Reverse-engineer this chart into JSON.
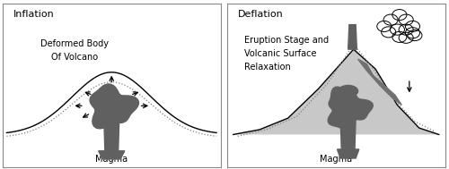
{
  "fig_width": 5.0,
  "fig_height": 1.89,
  "dpi": 100,
  "bg_color": "#ffffff",
  "border_color": "#888888",
  "dark_gray": "#606060",
  "light_gray": "#c8c8c8",
  "left_title": "Inflation",
  "right_title": "Deflation",
  "left_label1": "Deformed Body",
  "left_label2": "Of Volcano",
  "right_label1": "Eruption Stage and",
  "right_label2": "Volcanic Surface",
  "right_label3": "Relaxation",
  "magma_label": "Magma",
  "font_size": 7.0,
  "title_font_size": 8.0
}
